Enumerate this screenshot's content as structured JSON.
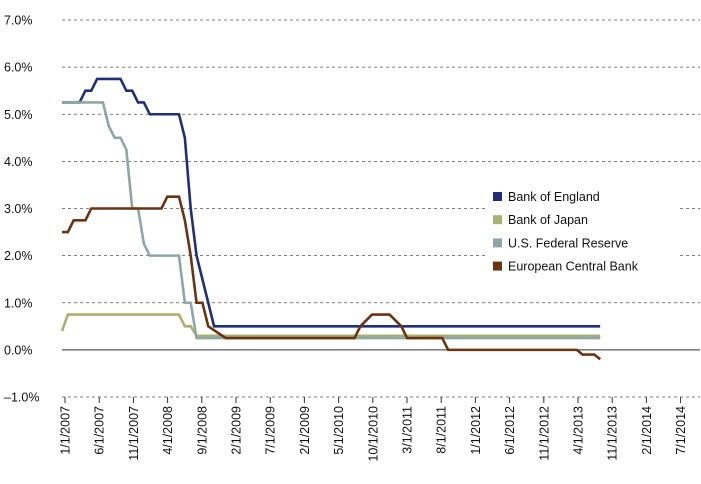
{
  "chart_data": {
    "type": "line",
    "title": "",
    "xlabel": "",
    "ylabel": "",
    "ylim": [
      -1.0,
      7.0
    ],
    "y_ticks": [
      "–1.0%",
      "0.0%",
      "1.0%",
      "2.0%",
      "3.0%",
      "4.0%",
      "5.0%",
      "6.0%",
      "7.0%"
    ],
    "x_ticks": [
      "1/1/2007",
      "6/1/2007",
      "11/1/2007",
      "4/1/2008",
      "9/1/2008",
      "2/1/2009",
      "7/1/2009",
      "2/1/2009",
      "5/1/2010",
      "10/1/2010",
      "3/1/2011",
      "8/1/2011",
      "1/1/2012",
      "6/1/2012",
      "11/1/2012",
      "4/1/2013",
      "11/1/2013",
      "2/1/2014",
      "7/1/2014"
    ],
    "grid": "horizontal dashed",
    "legend_position": "right",
    "series": [
      {
        "name": "Bank of England",
        "color": "#1f2f7a",
        "points": [
          [
            "2007-01",
            5.25
          ],
          [
            "2007-02",
            5.25
          ],
          [
            "2007-03",
            5.25
          ],
          [
            "2007-04",
            5.25
          ],
          [
            "2007-05",
            5.5
          ],
          [
            "2007-06",
            5.5
          ],
          [
            "2007-07",
            5.75
          ],
          [
            "2007-08",
            5.75
          ],
          [
            "2007-09",
            5.75
          ],
          [
            "2007-10",
            5.75
          ],
          [
            "2007-11",
            5.75
          ],
          [
            "2007-12",
            5.5
          ],
          [
            "2008-01",
            5.5
          ],
          [
            "2008-02",
            5.25
          ],
          [
            "2008-03",
            5.25
          ],
          [
            "2008-04",
            5.0
          ],
          [
            "2008-05",
            5.0
          ],
          [
            "2008-06",
            5.0
          ],
          [
            "2008-07",
            5.0
          ],
          [
            "2008-08",
            5.0
          ],
          [
            "2008-09",
            5.0
          ],
          [
            "2008-10",
            4.5
          ],
          [
            "2008-11",
            3.0
          ],
          [
            "2008-12",
            2.0
          ],
          [
            "2009-01",
            1.5
          ],
          [
            "2009-02",
            1.0
          ],
          [
            "2009-03",
            0.5
          ],
          [
            "2014-09",
            0.5
          ]
        ]
      },
      {
        "name": "Bank of Japan",
        "color": "#a9b172",
        "points": [
          [
            "2007-01",
            0.4
          ],
          [
            "2007-02",
            0.75
          ],
          [
            "2008-09",
            0.75
          ],
          [
            "2008-10",
            0.5
          ],
          [
            "2008-11",
            0.5
          ],
          [
            "2008-12",
            0.3
          ],
          [
            "2014-09",
            0.3
          ]
        ]
      },
      {
        "name": "U.S. Federal Reserve",
        "color": "#8ea6a6",
        "points": [
          [
            "2007-01",
            5.25
          ],
          [
            "2007-08",
            5.25
          ],
          [
            "2007-09",
            4.75
          ],
          [
            "2007-10",
            4.5
          ],
          [
            "2007-11",
            4.5
          ],
          [
            "2007-12",
            4.25
          ],
          [
            "2008-01",
            3.0
          ],
          [
            "2008-02",
            3.0
          ],
          [
            "2008-03",
            2.25
          ],
          [
            "2008-04",
            2.0
          ],
          [
            "2008-09",
            2.0
          ],
          [
            "2008-10",
            1.0
          ],
          [
            "2008-11",
            1.0
          ],
          [
            "2008-12",
            0.25
          ],
          [
            "2014-09",
            0.25
          ]
        ]
      },
      {
        "name": "European Central Bank",
        "color": "#6b3312",
        "points": [
          [
            "2007-01",
            2.5
          ],
          [
            "2007-02",
            2.5
          ],
          [
            "2007-03",
            2.75
          ],
          [
            "2007-05",
            2.75
          ],
          [
            "2007-06",
            3.0
          ],
          [
            "2008-06",
            3.0
          ],
          [
            "2008-07",
            3.25
          ],
          [
            "2008-09",
            3.25
          ],
          [
            "2008-10",
            2.75
          ],
          [
            "2008-11",
            2.0
          ],
          [
            "2008-12",
            1.0
          ],
          [
            "2009-01",
            1.0
          ],
          [
            "2009-02",
            0.5
          ],
          [
            "2009-05",
            0.25
          ],
          [
            "2011-03",
            0.25
          ],
          [
            "2011-04",
            0.5
          ],
          [
            "2011-06",
            0.75
          ],
          [
            "2011-09",
            0.75
          ],
          [
            "2011-11",
            0.5
          ],
          [
            "2011-12",
            0.25
          ],
          [
            "2012-06",
            0.25
          ],
          [
            "2012-07",
            0.0
          ],
          [
            "2013-04",
            0.0
          ],
          [
            "2013-05",
            0.0
          ],
          [
            "2014-05",
            0.0
          ],
          [
            "2014-06",
            -0.1
          ],
          [
            "2014-08",
            -0.1
          ],
          [
            "2014-09",
            -0.2
          ]
        ]
      }
    ]
  }
}
